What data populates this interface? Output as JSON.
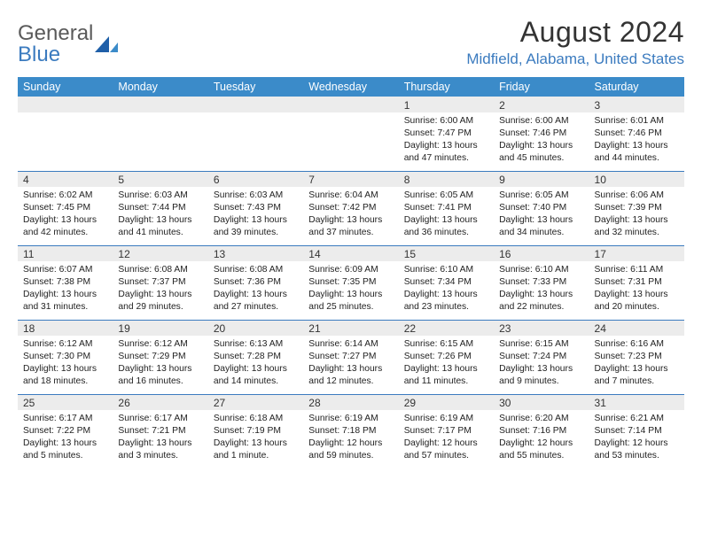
{
  "logo": {
    "text1": "General",
    "text2": "Blue"
  },
  "title": "August 2024",
  "location": "Midfield, Alabama, United States",
  "colors": {
    "header_bg": "#3b8bc9",
    "accent": "#3b7bbf",
    "daynum_bg": "#ececec",
    "text": "#222222"
  },
  "weekdays": [
    "Sunday",
    "Monday",
    "Tuesday",
    "Wednesday",
    "Thursday",
    "Friday",
    "Saturday"
  ],
  "weeks": [
    [
      null,
      null,
      null,
      null,
      {
        "n": "1",
        "sr": "6:00 AM",
        "ss": "7:47 PM",
        "dl": "13 hours and 47 minutes."
      },
      {
        "n": "2",
        "sr": "6:00 AM",
        "ss": "7:46 PM",
        "dl": "13 hours and 45 minutes."
      },
      {
        "n": "3",
        "sr": "6:01 AM",
        "ss": "7:46 PM",
        "dl": "13 hours and 44 minutes."
      }
    ],
    [
      {
        "n": "4",
        "sr": "6:02 AM",
        "ss": "7:45 PM",
        "dl": "13 hours and 42 minutes."
      },
      {
        "n": "5",
        "sr": "6:03 AM",
        "ss": "7:44 PM",
        "dl": "13 hours and 41 minutes."
      },
      {
        "n": "6",
        "sr": "6:03 AM",
        "ss": "7:43 PM",
        "dl": "13 hours and 39 minutes."
      },
      {
        "n": "7",
        "sr": "6:04 AM",
        "ss": "7:42 PM",
        "dl": "13 hours and 37 minutes."
      },
      {
        "n": "8",
        "sr": "6:05 AM",
        "ss": "7:41 PM",
        "dl": "13 hours and 36 minutes."
      },
      {
        "n": "9",
        "sr": "6:05 AM",
        "ss": "7:40 PM",
        "dl": "13 hours and 34 minutes."
      },
      {
        "n": "10",
        "sr": "6:06 AM",
        "ss": "7:39 PM",
        "dl": "13 hours and 32 minutes."
      }
    ],
    [
      {
        "n": "11",
        "sr": "6:07 AM",
        "ss": "7:38 PM",
        "dl": "13 hours and 31 minutes."
      },
      {
        "n": "12",
        "sr": "6:08 AM",
        "ss": "7:37 PM",
        "dl": "13 hours and 29 minutes."
      },
      {
        "n": "13",
        "sr": "6:08 AM",
        "ss": "7:36 PM",
        "dl": "13 hours and 27 minutes."
      },
      {
        "n": "14",
        "sr": "6:09 AM",
        "ss": "7:35 PM",
        "dl": "13 hours and 25 minutes."
      },
      {
        "n": "15",
        "sr": "6:10 AM",
        "ss": "7:34 PM",
        "dl": "13 hours and 23 minutes."
      },
      {
        "n": "16",
        "sr": "6:10 AM",
        "ss": "7:33 PM",
        "dl": "13 hours and 22 minutes."
      },
      {
        "n": "17",
        "sr": "6:11 AM",
        "ss": "7:31 PM",
        "dl": "13 hours and 20 minutes."
      }
    ],
    [
      {
        "n": "18",
        "sr": "6:12 AM",
        "ss": "7:30 PM",
        "dl": "13 hours and 18 minutes."
      },
      {
        "n": "19",
        "sr": "6:12 AM",
        "ss": "7:29 PM",
        "dl": "13 hours and 16 minutes."
      },
      {
        "n": "20",
        "sr": "6:13 AM",
        "ss": "7:28 PM",
        "dl": "13 hours and 14 minutes."
      },
      {
        "n": "21",
        "sr": "6:14 AM",
        "ss": "7:27 PM",
        "dl": "13 hours and 12 minutes."
      },
      {
        "n": "22",
        "sr": "6:15 AM",
        "ss": "7:26 PM",
        "dl": "13 hours and 11 minutes."
      },
      {
        "n": "23",
        "sr": "6:15 AM",
        "ss": "7:24 PM",
        "dl": "13 hours and 9 minutes."
      },
      {
        "n": "24",
        "sr": "6:16 AM",
        "ss": "7:23 PM",
        "dl": "13 hours and 7 minutes."
      }
    ],
    [
      {
        "n": "25",
        "sr": "6:17 AM",
        "ss": "7:22 PM",
        "dl": "13 hours and 5 minutes."
      },
      {
        "n": "26",
        "sr": "6:17 AM",
        "ss": "7:21 PM",
        "dl": "13 hours and 3 minutes."
      },
      {
        "n": "27",
        "sr": "6:18 AM",
        "ss": "7:19 PM",
        "dl": "13 hours and 1 minute."
      },
      {
        "n": "28",
        "sr": "6:19 AM",
        "ss": "7:18 PM",
        "dl": "12 hours and 59 minutes."
      },
      {
        "n": "29",
        "sr": "6:19 AM",
        "ss": "7:17 PM",
        "dl": "12 hours and 57 minutes."
      },
      {
        "n": "30",
        "sr": "6:20 AM",
        "ss": "7:16 PM",
        "dl": "12 hours and 55 minutes."
      },
      {
        "n": "31",
        "sr": "6:21 AM",
        "ss": "7:14 PM",
        "dl": "12 hours and 53 minutes."
      }
    ]
  ],
  "labels": {
    "sunrise": "Sunrise:",
    "sunset": "Sunset:",
    "daylight": "Daylight:"
  }
}
